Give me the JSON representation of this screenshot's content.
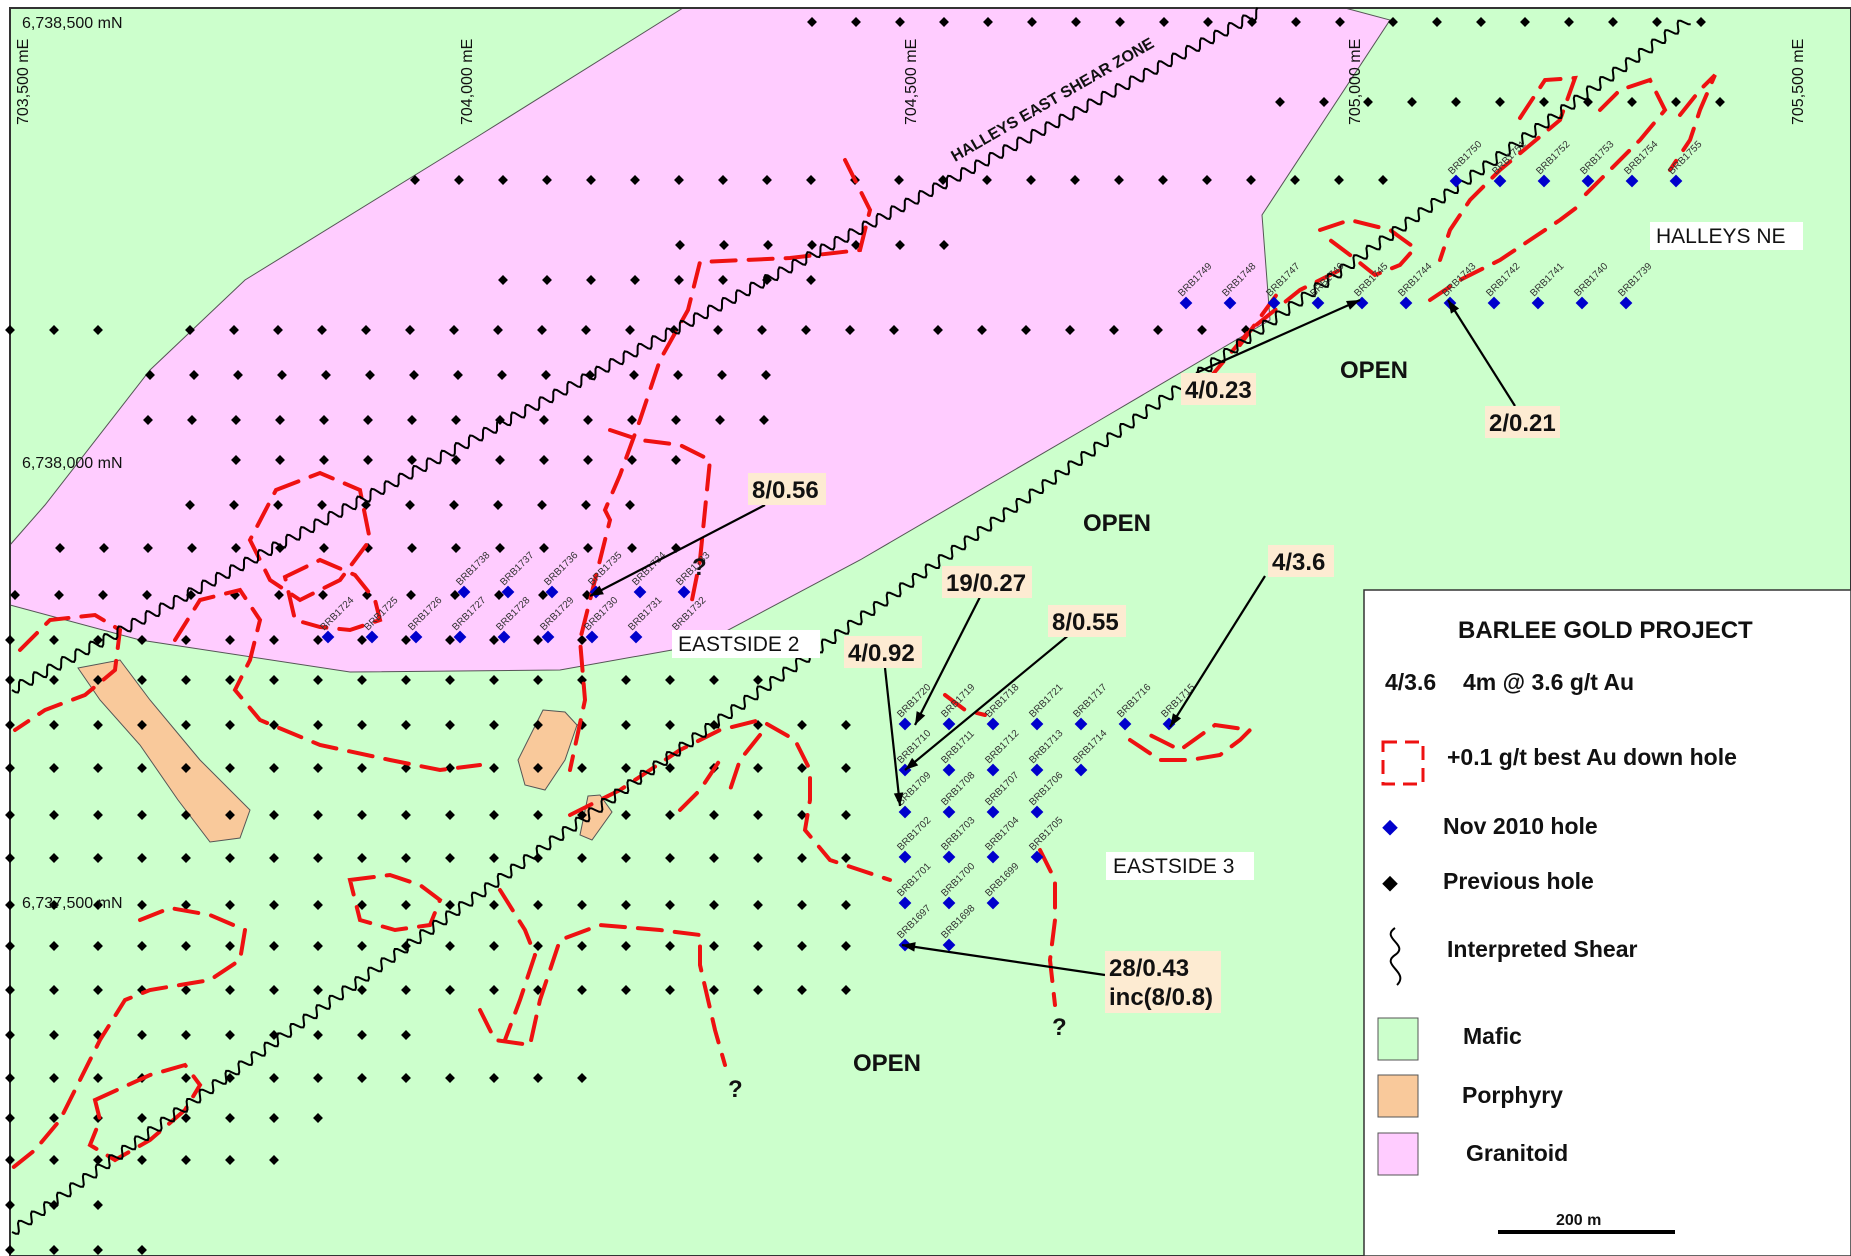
{
  "coordinates": {
    "easting": [
      "703,500 mE",
      "704,000 mE",
      "704,500 mE",
      "705,000 mE",
      "705,500 mE"
    ],
    "northing": [
      "6,738,500 mN",
      "6,738,000 mN",
      "6,737,500 mN"
    ]
  },
  "labels": {
    "shear_zone": "HALLEYS EAST SHEAR ZONE",
    "areas": [
      "EASTSIDE 2",
      "EASTSIDE 3",
      "HALLEYS NE"
    ],
    "open": "OPEN",
    "question": "?"
  },
  "results": [
    "8/0.56",
    "4/0.23",
    "2/0.21",
    "19/0.27",
    "8/0.55",
    "4/0.92",
    "4/3.6",
    "28/0.43",
    "inc(8/0.8)"
  ],
  "holes": {
    "row_es2_upper": [
      "BRB1733",
      "BRB1734",
      "BRB1735",
      "BRB1736",
      "BRB1737",
      "BRB1738"
    ],
    "row_es2_mid": [
      "BRB1724",
      "BRB1725",
      "BRB1726",
      "BRB1727",
      "BRB1728",
      "BRB1729",
      "BRB1730",
      "BRB1731",
      "BRB1732"
    ],
    "row_ne_upper": [
      "BRB1750",
      "BRB1751",
      "BRB1752",
      "BRB1753",
      "BRB1754",
      "BRB1755"
    ],
    "row_ne_lower": [
      "BRB1749",
      "BRB1748",
      "BRB1747",
      "BRB1746",
      "BRB1745",
      "BRB1744",
      "BRB1743",
      "BRB1742",
      "BRB1741",
      "BRB1740",
      "BRB1739"
    ],
    "row_es3_1": [
      "BRB1720",
      "BRB1719",
      "BRB1718",
      "BRB1721",
      "BRB1717",
      "BRB1716",
      "BRB1715"
    ],
    "row_es3_2": [
      "BRB1710",
      "BRB1711",
      "BRB1712",
      "BRB1713",
      "BRB1714"
    ],
    "row_es3_3": [
      "BRB1709",
      "BRB1708",
      "BRB1707",
      "BRB1706"
    ],
    "row_es3_4": [
      "BRB1702",
      "BRB1703",
      "BRB1704",
      "BRB1705"
    ],
    "row_es3_5": [
      "BRB1701",
      "BRB1700",
      "BRB1699"
    ],
    "row_es3_6": [
      "BRB1697",
      "BRB1698"
    ]
  },
  "legend": {
    "title": "BARLEE GOLD PROJECT",
    "example_value": "4/3.6",
    "example_text": "4m @ 3.6 g/t Au",
    "items": [
      {
        "label": "+0.1 g/t best Au down hole",
        "icon": "dashed-red-box-icon"
      },
      {
        "label": "Nov 2010 hole",
        "icon": "blue-diamond-icon"
      },
      {
        "label": "Previous hole",
        "icon": "black-diamond-icon"
      },
      {
        "label": "Interpreted Shear",
        "icon": "squiggle-line-icon"
      },
      {
        "label": "Mafic",
        "icon": "mafic-swatch-icon"
      },
      {
        "label": "Porphyry",
        "icon": "porphyry-swatch-icon"
      },
      {
        "label": "Granitoid",
        "icon": "granitoid-swatch-icon"
      }
    ],
    "scale_label": "200 m"
  },
  "colors": {
    "mafic": "#ccffcc",
    "porphyry": "#f9c99b",
    "granitoid": "#ffccff",
    "anomaly": "#ff0000",
    "new_hole": "#0000cc",
    "previous_hole": "#000000",
    "result_bg": "#fdebd2"
  }
}
